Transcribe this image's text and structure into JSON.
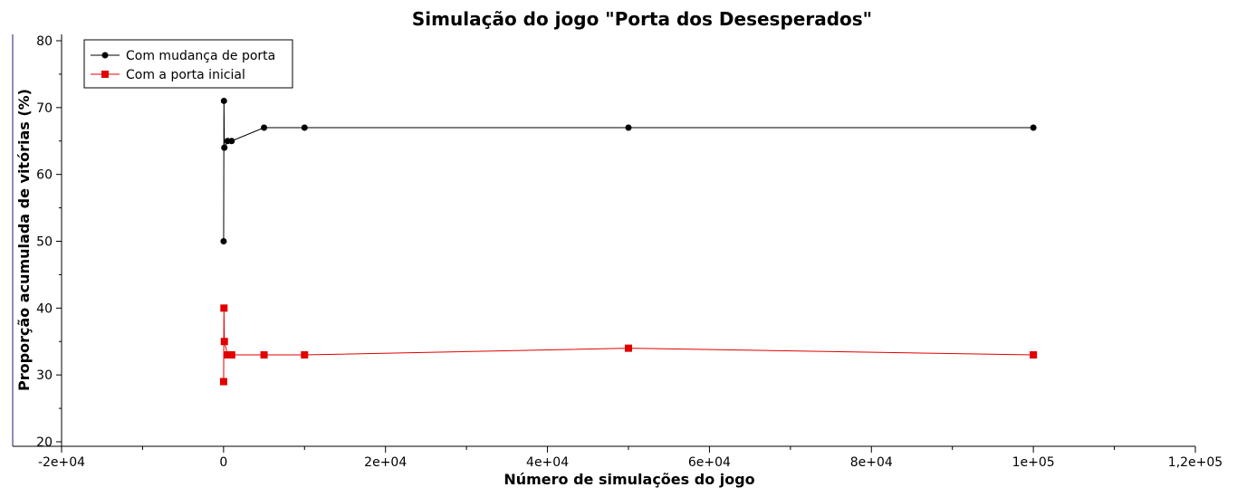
{
  "chart_data": {
    "type": "line",
    "title": "Simulação do jogo \"Porta dos Desesperados\"",
    "xlabel": "Número de simulações do jogo",
    "ylabel": "Proporção acumulada de vitórias (%)",
    "xlim": [
      -20000,
      120000
    ],
    "ylim": [
      20,
      80
    ],
    "x_ticks": [
      {
        "value": -20000,
        "label": "-2e+04"
      },
      {
        "value": 0,
        "label": "0"
      },
      {
        "value": 20000,
        "label": "2e+04"
      },
      {
        "value": 40000,
        "label": "4e+04"
      },
      {
        "value": 60000,
        "label": "6e+04"
      },
      {
        "value": 80000,
        "label": "8e+04"
      },
      {
        "value": 100000,
        "label": "1e+05"
      },
      {
        "value": 120000,
        "label": "1,2e+05"
      }
    ],
    "y_ticks": [
      {
        "value": 20,
        "label": "20"
      },
      {
        "value": 30,
        "label": "30"
      },
      {
        "value": 40,
        "label": "40"
      },
      {
        "value": 50,
        "label": "50"
      },
      {
        "value": 60,
        "label": "60"
      },
      {
        "value": 70,
        "label": "70"
      },
      {
        "value": 80,
        "label": "80"
      }
    ],
    "grid": false,
    "legend_position": "top-left",
    "series": [
      {
        "name": "Com mudança de porta",
        "color": "#000000",
        "marker": "circle",
        "x": [
          10,
          50,
          100,
          500,
          1000,
          5000,
          10000,
          50000,
          100000
        ],
        "y": [
          50,
          71,
          64,
          65,
          65,
          67,
          67,
          67,
          67
        ]
      },
      {
        "name": "Com a porta inicial",
        "color": "#e00000",
        "marker": "square",
        "x": [
          10,
          50,
          100,
          500,
          1000,
          5000,
          10000,
          50000,
          100000
        ],
        "y": [
          29,
          40,
          35,
          33,
          33,
          33,
          33,
          34,
          33
        ]
      }
    ]
  }
}
